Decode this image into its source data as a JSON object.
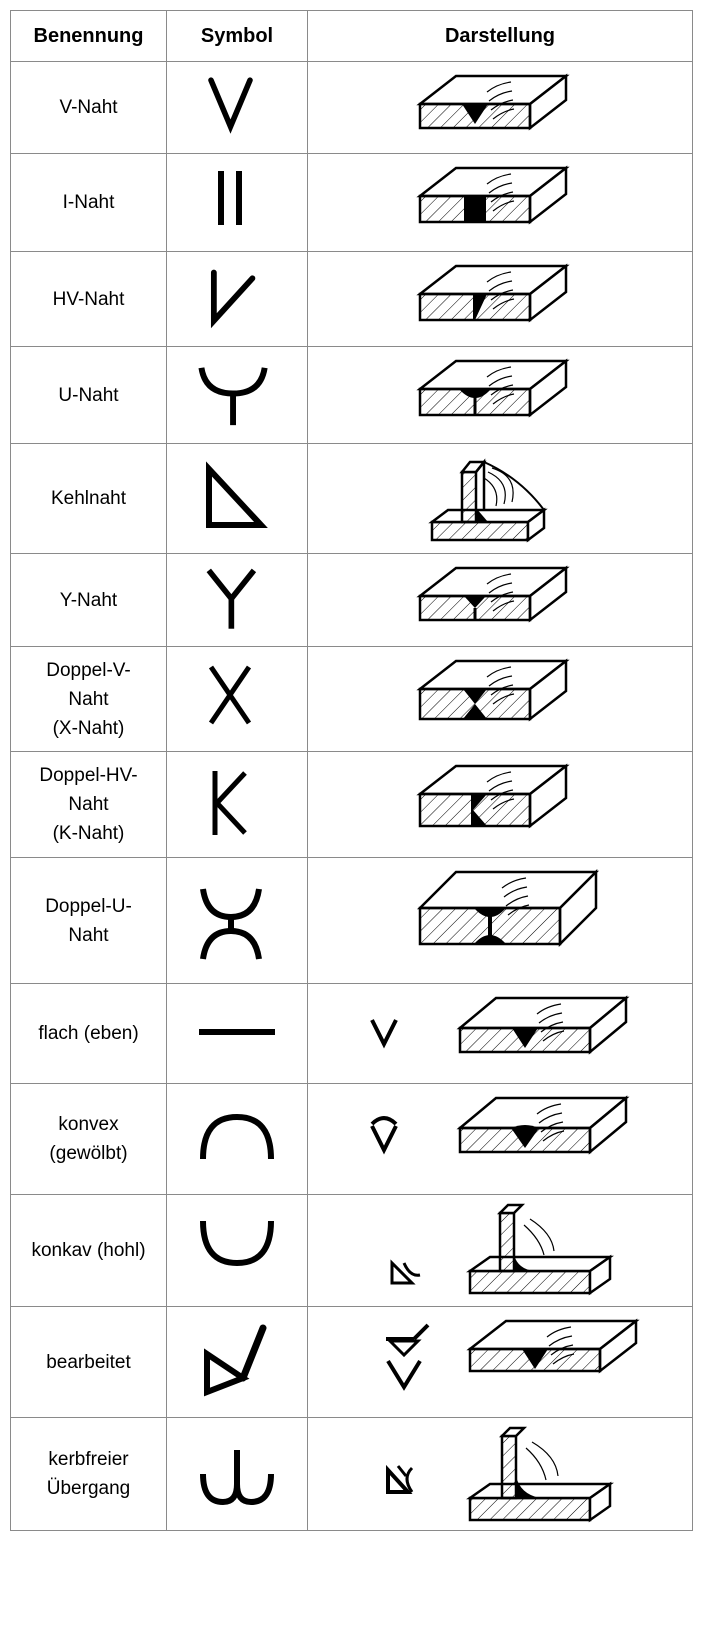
{
  "headers": {
    "name": "Benennung",
    "symbol": "Symbol",
    "darstellung": "Darstellung"
  },
  "rows": [
    {
      "name": "V-Naht",
      "symbol_icon": "v-seam-symbol-icon",
      "illustration_icon": "v-seam-illustration-icon"
    },
    {
      "name": "I-Naht",
      "symbol_icon": "i-seam-symbol-icon",
      "illustration_icon": "i-seam-illustration-icon"
    },
    {
      "name": "HV-Naht",
      "symbol_icon": "hv-seam-symbol-icon",
      "illustration_icon": "hv-seam-illustration-icon"
    },
    {
      "name": "U-Naht",
      "symbol_icon": "u-seam-symbol-icon",
      "illustration_icon": "u-seam-illustration-icon"
    },
    {
      "name": "Kehlnaht",
      "symbol_icon": "fillet-weld-symbol-icon",
      "illustration_icon": "fillet-weld-illustration-icon"
    },
    {
      "name": "Y-Naht",
      "symbol_icon": "y-seam-symbol-icon",
      "illustration_icon": "y-seam-illustration-icon"
    },
    {
      "name": "Doppel-V-\nNaht\n(X-Naht)",
      "symbol_icon": "x-seam-symbol-icon",
      "illustration_icon": "x-seam-illustration-icon"
    },
    {
      "name": "Doppel-HV-\nNaht\n(K-Naht)",
      "symbol_icon": "k-seam-symbol-icon",
      "illustration_icon": "k-seam-illustration-icon"
    },
    {
      "name": "Doppel-U-\nNaht",
      "symbol_icon": "double-u-seam-symbol-icon",
      "illustration_icon": "double-u-seam-illustration-icon"
    },
    {
      "name": "flach (eben)",
      "symbol_icon": "flat-surface-symbol-icon",
      "illustration_icon": "flat-surface-illustration-icon"
    },
    {
      "name": "konvex\n(gewölbt)",
      "symbol_icon": "convex-surface-symbol-icon",
      "illustration_icon": "convex-surface-illustration-icon"
    },
    {
      "name": "konkav (hohl)",
      "symbol_icon": "concave-surface-symbol-icon",
      "illustration_icon": "concave-surface-illustration-icon"
    },
    {
      "name": "bearbeitet",
      "symbol_icon": "machined-surface-symbol-icon",
      "illustration_icon": "machined-surface-illustration-icon"
    },
    {
      "name": "kerbfreier\nÜbergang",
      "symbol_icon": "notch-free-transition-symbol-icon",
      "illustration_icon": "notch-free-transition-illustration-icon"
    }
  ]
}
